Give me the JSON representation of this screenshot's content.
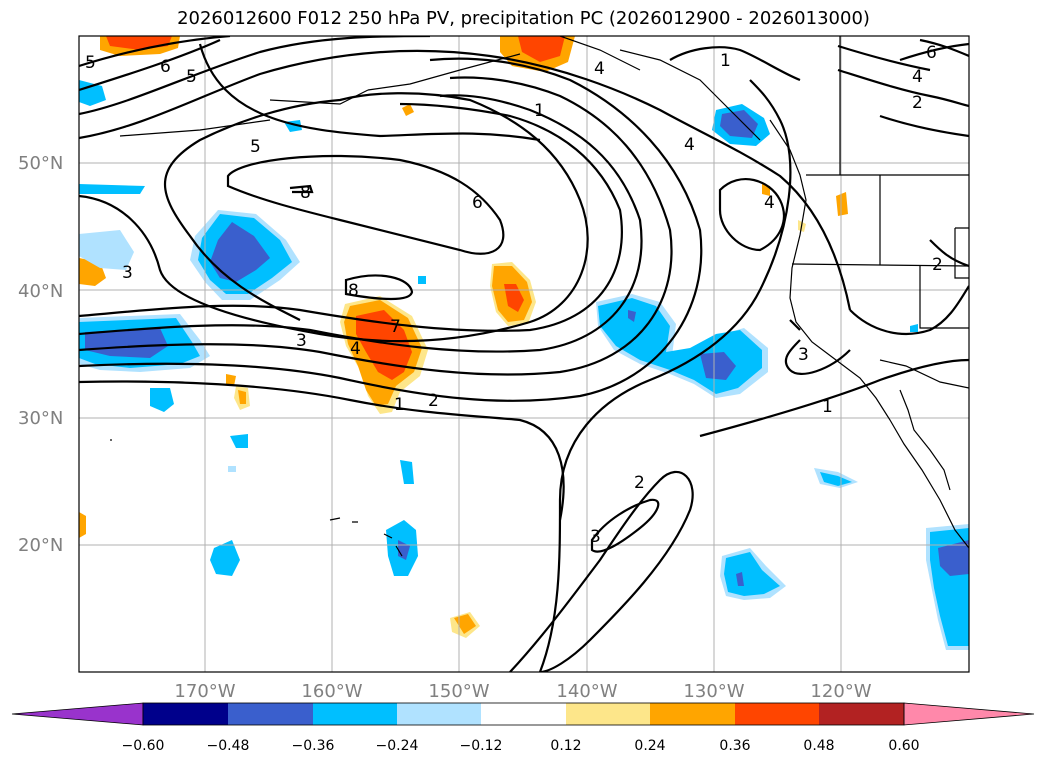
{
  "title": "2026012600 F012 250 hPa PV, precipitation PC (2026012900 - 2026013000)",
  "map": {
    "lat_labels": [
      "50°N",
      "40°N",
      "30°N",
      "20°N"
    ],
    "lon_labels": [
      "170°W",
      "160°W",
      "150°W",
      "140°W",
      "130°W",
      "120°W"
    ],
    "extent": {
      "lon_min": -180,
      "lon_max": -110,
      "lat_min": 10,
      "lat_max": 60
    },
    "gridlines": true
  },
  "pv_contour_labels": [
    "6",
    "5",
    "5",
    "4",
    "1",
    "4",
    "1",
    "6",
    "4",
    "2",
    "5",
    "8",
    "6",
    "4",
    "3",
    "8",
    "7",
    "3",
    "4",
    "2",
    "1",
    "1",
    "3",
    "2",
    "3",
    "2"
  ],
  "colorbar": {
    "tick_labels": [
      "−0.60",
      "−0.48",
      "−0.36",
      "−0.24",
      "−0.12",
      "0.12",
      "0.24",
      "0.36",
      "0.48",
      "0.60"
    ],
    "colors": [
      "#9933cc",
      "#00008b",
      "#3a5fcd",
      "#00bfff",
      "#b0e2ff",
      "#ffffff",
      "#fde68a",
      "#ffa500",
      "#ff4500",
      "#b22222",
      "#ff88aa"
    ]
  },
  "colors": {
    "land_line": "#000000",
    "grid": "#b0b0b0",
    "contour": "#000000"
  }
}
